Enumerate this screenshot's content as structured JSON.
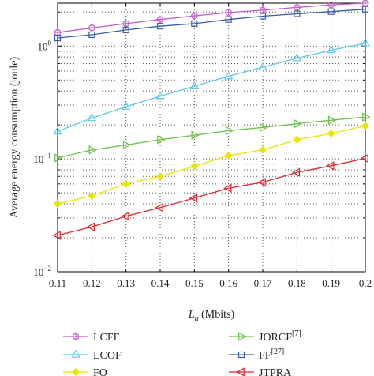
{
  "chart_data": {
    "type": "line",
    "x": [
      0.11,
      0.12,
      0.13,
      0.14,
      0.15,
      0.16,
      0.17,
      0.18,
      0.19,
      0.2
    ],
    "x_tick_labels": [
      "0.11",
      "0.12",
      "0.13",
      "0.14",
      "0.15",
      "0.16",
      "0.17",
      "0.18",
      "0.19",
      "0.2"
    ],
    "xlabel": "L",
    "xlabel_sub": "u",
    "xlabel_unit": " (Mbits)",
    "ylabel": "Average energy consumption (joule)",
    "y_scale": "log",
    "xlim": [
      0.11,
      0.2
    ],
    "ylim": [
      0.01,
      2.4
    ],
    "y_ticks": [
      {
        "value": 0.01,
        "base": "10",
        "exp": "−2"
      },
      {
        "value": 0.1,
        "base": "10",
        "exp": "−1"
      },
      {
        "value": 1,
        "base": "10",
        "exp": "0"
      }
    ],
    "grid": true,
    "legend_position": "bottom",
    "series": [
      {
        "name": "LCFF",
        "ref": "",
        "color": "#c45cc8",
        "marker": "star",
        "values": [
          1.32,
          1.45,
          1.58,
          1.72,
          1.85,
          1.98,
          2.08,
          2.2,
          2.32,
          2.4
        ]
      },
      {
        "name": "LCOF",
        "ref": "",
        "color": "#5ec8e6",
        "marker": "triangle-up",
        "values": [
          0.175,
          0.23,
          0.29,
          0.36,
          0.44,
          0.54,
          0.65,
          0.78,
          0.92,
          1.06
        ]
      },
      {
        "name": "FO",
        "ref": "",
        "color": "#e6e600",
        "marker": "diamond",
        "values": [
          0.04,
          0.047,
          0.06,
          0.07,
          0.086,
          0.107,
          0.12,
          0.148,
          0.168,
          0.196
        ]
      },
      {
        "name": "JORCF",
        "ref": "[7]",
        "color": "#6cc24a",
        "marker": "triangle-right",
        "values": [
          0.102,
          0.12,
          0.133,
          0.148,
          0.162,
          0.178,
          0.19,
          0.205,
          0.22,
          0.235
        ]
      },
      {
        "name": "FF",
        "ref": "[27]",
        "color": "#3a5ba8",
        "marker": "square",
        "values": [
          1.18,
          1.26,
          1.39,
          1.5,
          1.58,
          1.72,
          1.84,
          1.93,
          2.02,
          2.12
        ]
      },
      {
        "name": "JTPRA",
        "ref": "",
        "color": "#e0262e",
        "marker": "triangle-left",
        "values": [
          0.021,
          0.025,
          0.031,
          0.037,
          0.045,
          0.055,
          0.062,
          0.076,
          0.087,
          0.101
        ]
      }
    ]
  }
}
